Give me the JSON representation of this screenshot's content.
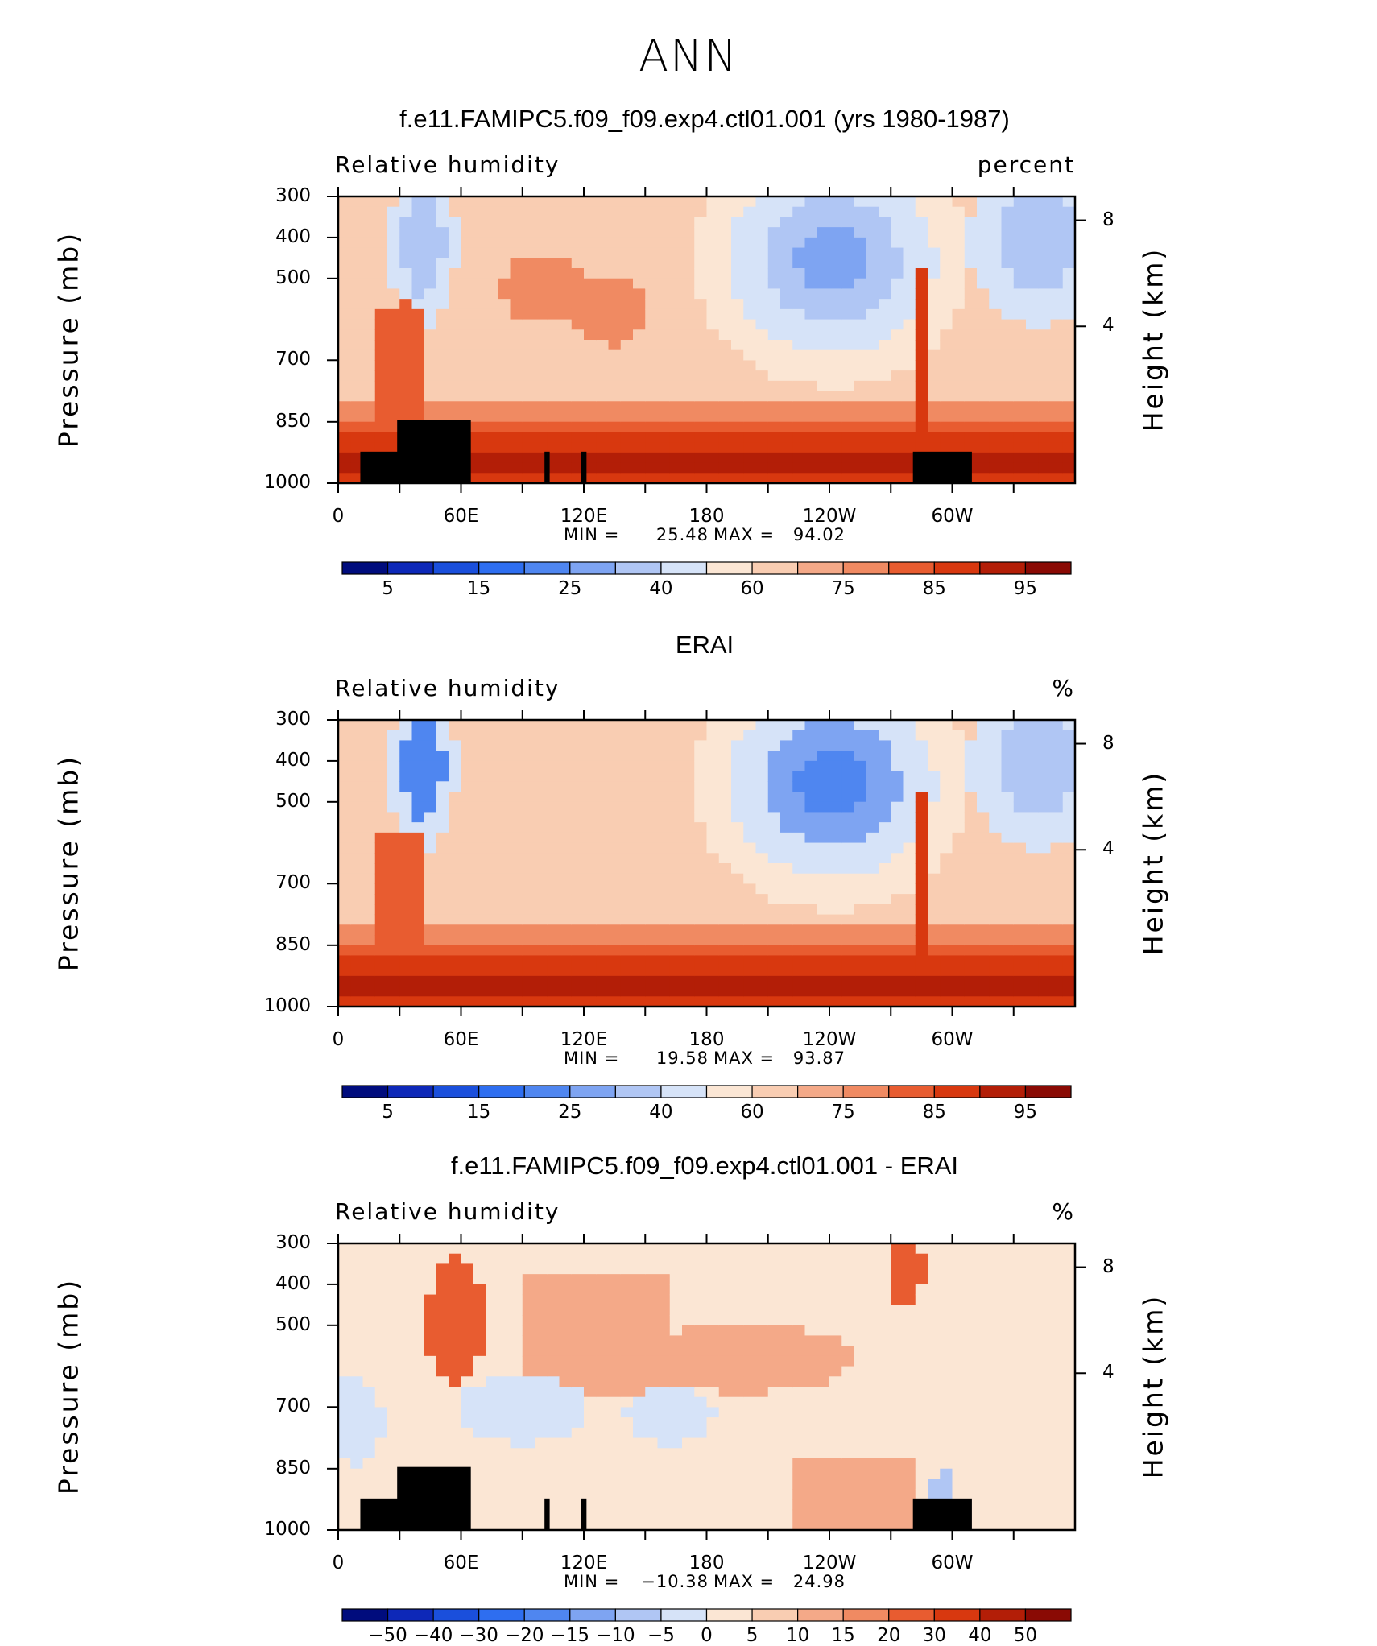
{
  "figure_title": "ANN",
  "chart_data": [
    {
      "type": "heatmap",
      "title": "f.e11.FAMIPC5.f09_f09.exp4.ctl01.001 (yrs 1980-1987)",
      "left_label": "Relative humidity",
      "right_label": "percent",
      "ylabel": "Pressure (mb)",
      "ylabel_right": "Height (km)",
      "x_ticks": [
        "0",
        "60E",
        "120E",
        "180",
        "120W",
        "60W"
      ],
      "y_ticks": [
        "300",
        "400",
        "500",
        "700",
        "850",
        "1000"
      ],
      "y_ticks_right": [
        "8",
        "4"
      ],
      "stats": {
        "min_label": "MIN =",
        "min": "25.48",
        "max_label": "MAX =",
        "max": "94.02"
      },
      "colorbar_labels": [
        "5",
        "15",
        "25",
        "40",
        "60",
        "75",
        "85",
        "95"
      ],
      "value_range": [
        25.48,
        94.02
      ]
    },
    {
      "type": "heatmap",
      "title": "ERAI",
      "left_label": "Relative humidity",
      "right_label": "%",
      "ylabel": "Pressure (mb)",
      "ylabel_right": "Height (km)",
      "x_ticks": [
        "0",
        "60E",
        "120E",
        "180",
        "120W",
        "60W"
      ],
      "y_ticks": [
        "300",
        "400",
        "500",
        "700",
        "850",
        "1000"
      ],
      "y_ticks_right": [
        "8",
        "4"
      ],
      "stats": {
        "min_label": "MIN =",
        "min": "19.58",
        "max_label": "MAX =",
        "max": "93.87"
      },
      "colorbar_labels": [
        "5",
        "15",
        "25",
        "40",
        "60",
        "75",
        "85",
        "95"
      ],
      "value_range": [
        19.58,
        93.87
      ]
    },
    {
      "type": "heatmap",
      "title": "f.e11.FAMIPC5.f09_f09.exp4.ctl01.001 - ERAI",
      "left_label": "Relative humidity",
      "right_label": "%",
      "ylabel": "Pressure (mb)",
      "ylabel_right": "Height (km)",
      "x_ticks": [
        "0",
        "60E",
        "120E",
        "180",
        "120W",
        "60W"
      ],
      "y_ticks": [
        "300",
        "400",
        "500",
        "700",
        "850",
        "1000"
      ],
      "y_ticks_right": [
        "8",
        "4"
      ],
      "stats": {
        "min_label": "MIN =",
        "min": "−10.38",
        "max_label": "MAX =",
        "max": "24.98"
      },
      "colorbar_labels": [
        "−50",
        "−40",
        "−30",
        "−20",
        "−15",
        "−10",
        "−5",
        "0",
        "5",
        "10",
        "15",
        "20",
        "30",
        "40",
        "50"
      ],
      "value_range": [
        -10.38,
        24.98
      ]
    }
  ],
  "colors": {
    "scale": [
      "#000c7d",
      "#0d28b8",
      "#1a4fdc",
      "#2e6ef0",
      "#4f86f0",
      "#7ea4f2",
      "#b0c6f4",
      "#d6e3f8",
      "#fbe6d4",
      "#f9cdb2",
      "#f4a988",
      "#f08a62",
      "#e85c30",
      "#d8380f",
      "#b31e07",
      "#8a0a04"
    ]
  }
}
